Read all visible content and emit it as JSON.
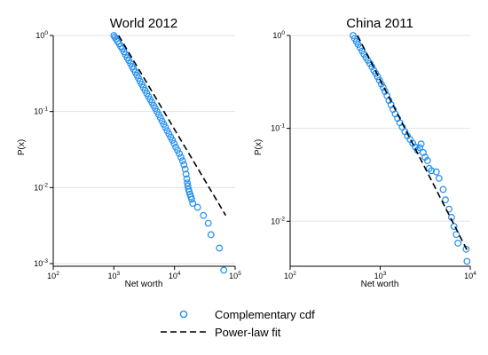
{
  "legend": {
    "position": "bottom-center",
    "items": [
      {
        "label": "Complementary cdf",
        "kind": "marker",
        "color": "#1f8ef1"
      },
      {
        "label": "Power-law fit",
        "kind": "dashed-line",
        "color": "#000000"
      }
    ]
  },
  "chart_data": [
    {
      "type": "scatter",
      "title": "World 2012",
      "xlabel": "Net worth",
      "ylabel": "P(x)",
      "xscale": "log",
      "yscale": "log",
      "xlim": [
        100,
        100000
      ],
      "ylim": [
        0.001,
        1
      ],
      "xticks": [
        {
          "base": "10",
          "exp": "2"
        },
        {
          "base": "10",
          "exp": "3"
        },
        {
          "base": "10",
          "exp": "4"
        },
        {
          "base": "10",
          "exp": "5"
        }
      ],
      "yticks": [
        {
          "base": "10",
          "exp": "0"
        },
        {
          "base": "10",
          "exp": "-1"
        },
        {
          "base": "10",
          "exp": "-2"
        },
        {
          "base": "10",
          "exp": "-3"
        }
      ],
      "grid": true,
      "marker_color": "#1f8ef1",
      "series": [
        {
          "name": "Complementary cdf",
          "kind": "markers",
          "points": [
            [
              1000,
              1.0
            ],
            [
              1040,
              0.95
            ],
            [
              1090,
              0.9
            ],
            [
              1150,
              0.84
            ],
            [
              1220,
              0.78
            ],
            [
              1300,
              0.72
            ],
            [
              1380,
              0.67
            ],
            [
              1470,
              0.61
            ],
            [
              1560,
              0.56
            ],
            [
              1660,
              0.51
            ],
            [
              1760,
              0.47
            ],
            [
              1880,
              0.43
            ],
            [
              2000,
              0.39
            ],
            [
              2120,
              0.36
            ],
            [
              2250,
              0.33
            ],
            [
              2390,
              0.3
            ],
            [
              2540,
              0.275
            ],
            [
              2700,
              0.25
            ],
            [
              2880,
              0.228
            ],
            [
              3070,
              0.208
            ],
            [
              3270,
              0.19
            ],
            [
              3490,
              0.173
            ],
            [
              3720,
              0.158
            ],
            [
              3970,
              0.144
            ],
            [
              4240,
              0.132
            ],
            [
              4520,
              0.12
            ],
            [
              4820,
              0.11
            ],
            [
              5140,
              0.1
            ],
            [
              5480,
              0.091
            ],
            [
              5850,
              0.083
            ],
            [
              6240,
              0.075
            ],
            [
              6650,
              0.068
            ],
            [
              7100,
              0.062
            ],
            [
              7580,
              0.056
            ],
            [
              8090,
              0.051
            ],
            [
              8640,
              0.046
            ],
            [
              9230,
              0.042
            ],
            [
              9850,
              0.038
            ],
            [
              10500,
              0.034
            ],
            [
              11200,
              0.031
            ],
            [
              12000,
              0.028
            ],
            [
              12800,
              0.025
            ],
            [
              13600,
              0.0225
            ],
            [
              14300,
              0.02
            ],
            [
              15000,
              0.0175
            ],
            [
              15500,
              0.015
            ],
            [
              16000,
              0.013
            ],
            [
              16300,
              0.0115
            ],
            [
              16600,
              0.0105
            ],
            [
              17000,
              0.0095
            ],
            [
              17500,
              0.0088
            ],
            [
              18000,
              0.0082
            ],
            [
              18600,
              0.0076
            ],
            [
              19200,
              0.007
            ],
            [
              20000,
              0.0062
            ],
            [
              24000,
              0.0055
            ],
            [
              30000,
              0.0043
            ],
            [
              36000,
              0.0034
            ],
            [
              40000,
              0.0024
            ],
            [
              55000,
              0.0016
            ],
            [
              65000,
              0.00082
            ]
          ]
        },
        {
          "name": "Power-law fit",
          "kind": "dashed-line",
          "points": [
            [
              1200,
              1.0
            ],
            [
              70000,
              0.0043
            ]
          ]
        }
      ]
    },
    {
      "type": "scatter",
      "title": "China 2011",
      "xlabel": "Net worth",
      "ylabel": "P(x)",
      "xscale": "log",
      "yscale": "log",
      "xlim": [
        100,
        10000
      ],
      "ylim": [
        0.0035,
        1
      ],
      "xticks": [
        {
          "base": "10",
          "exp": "2"
        },
        {
          "base": "10",
          "exp": "3"
        },
        {
          "base": "10",
          "exp": "4"
        }
      ],
      "yticks": [
        {
          "base": "10",
          "exp": "0"
        },
        {
          "base": "10",
          "exp": "-1"
        },
        {
          "base": "10",
          "exp": "-2"
        }
      ],
      "grid": true,
      "marker_color": "#1f8ef1",
      "series": [
        {
          "name": "Complementary cdf",
          "kind": "markers",
          "points": [
            [
              500,
              1.0
            ],
            [
              520,
              0.93
            ],
            [
              545,
              0.86
            ],
            [
              570,
              0.8
            ],
            [
              600,
              0.74
            ],
            [
              630,
              0.68
            ],
            [
              660,
              0.63
            ],
            [
              695,
              0.58
            ],
            [
              730,
              0.54
            ],
            [
              770,
              0.5
            ],
            [
              810,
              0.46
            ],
            [
              850,
              0.42
            ],
            [
              890,
              0.39
            ],
            [
              935,
              0.36
            ],
            [
              980,
              0.33
            ],
            [
              1030,
              0.3
            ],
            [
              1080,
              0.275
            ],
            [
              1130,
              0.25
            ],
            [
              1190,
              0.225
            ],
            [
              1250,
              0.2
            ],
            [
              1320,
              0.18
            ],
            [
              1390,
              0.16
            ],
            [
              1470,
              0.143
            ],
            [
              1560,
              0.128
            ],
            [
              1650,
              0.115
            ],
            [
              1760,
              0.103
            ],
            [
              1880,
              0.092
            ],
            [
              2000,
              0.083
            ],
            [
              2150,
              0.076
            ],
            [
              2300,
              0.069
            ],
            [
              2450,
              0.063
            ],
            [
              2600,
              0.058
            ],
            [
              2750,
              0.062
            ],
            [
              2850,
              0.068
            ],
            [
              3000,
              0.055
            ],
            [
              3150,
              0.049
            ],
            [
              3350,
              0.045
            ],
            [
              3500,
              0.037
            ],
            [
              3700,
              0.035
            ],
            [
              4200,
              0.034
            ],
            [
              4500,
              0.029
            ],
            [
              5000,
              0.022
            ],
            [
              5300,
              0.017
            ],
            [
              5800,
              0.0135
            ],
            [
              6200,
              0.011
            ],
            [
              6600,
              0.0088
            ],
            [
              7000,
              0.0072
            ],
            [
              7300,
              0.0058
            ],
            [
              9000,
              0.005
            ],
            [
              9200,
              0.0037
            ]
          ]
        },
        {
          "name": "Power-law fit",
          "kind": "dashed-line",
          "points": [
            [
              560,
              1.0
            ],
            [
              9200,
              0.0049
            ]
          ]
        }
      ]
    }
  ]
}
